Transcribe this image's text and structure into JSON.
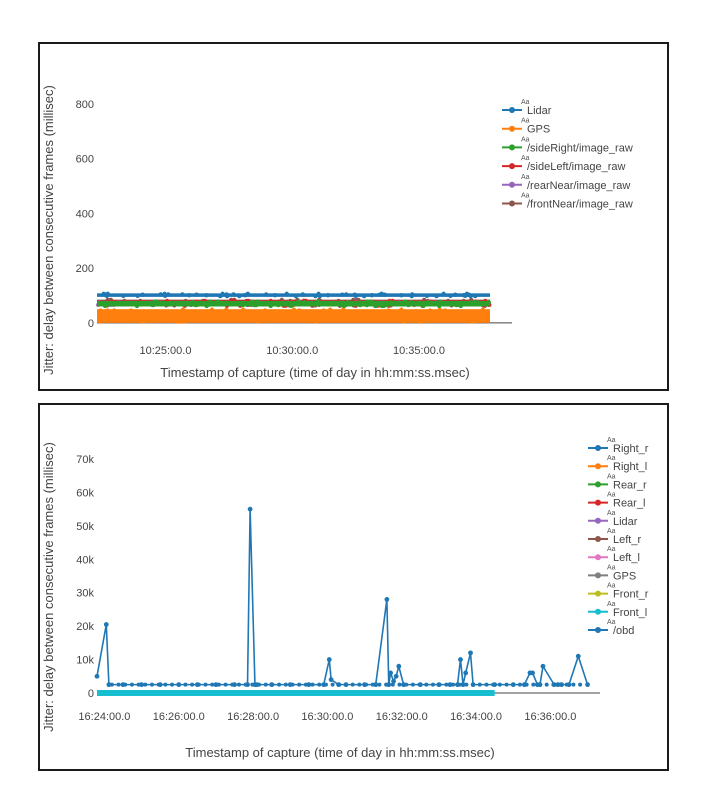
{
  "chart_data": [
    {
      "type": "line",
      "title": "",
      "xlabel": "Timestamp of capture (time of day in hh:mm:ss.msec)",
      "ylabel": "Jitter: delay between consecutive frames (millisec)",
      "x_tick_labels": [
        "10:25:00.0",
        "10:30:00.0",
        "10:35:00.0"
      ],
      "x_tick_minutes": [
        25,
        30,
        35
      ],
      "xlim_minutes": [
        22.3,
        37.8
      ],
      "x_data_range_minutes": [
        22.3,
        37.8
      ],
      "y_ticks": [
        0,
        200,
        400,
        600,
        800
      ],
      "y_tick_labels": [
        "0",
        "200",
        "400",
        "600",
        "800"
      ],
      "ylim": [
        -15,
        880
      ],
      "grid": false,
      "legend_position": "right",
      "legend_marker_text": "Aa",
      "series": [
        {
          "name": "Lidar",
          "color": "#1f77b4",
          "band": [
            95,
            108
          ],
          "jitter_points": [
            98,
            104,
            101,
            106,
            99,
            103
          ]
        },
        {
          "name": "GPS",
          "color": "#ff7f0e",
          "band": [
            0,
            50
          ],
          "jitter_points": [
            5,
            45,
            20,
            38,
            12,
            48
          ]
        },
        {
          "name": "/sideRight/image_raw",
          "color": "#2ca02c",
          "band": [
            60,
            80
          ],
          "jitter_points": [
            65,
            75,
            70,
            78,
            62
          ]
        },
        {
          "name": "/sideLeft/image_raw",
          "color": "#d62728",
          "band": [
            60,
            82
          ],
          "jitter_points": [
            63,
            77,
            70,
            80,
            66
          ]
        },
        {
          "name": "/rearNear/image_raw",
          "color": "#9467bd",
          "band": [
            62,
            80
          ],
          "jitter_points": [
            66,
            74,
            70,
            77
          ]
        },
        {
          "name": "/frontNear/image_raw",
          "color": "#8c564b",
          "band": [
            62,
            85
          ],
          "jitter_points": [
            64,
            80,
            72,
            84,
            68
          ]
        }
      ]
    },
    {
      "type": "line",
      "title": "",
      "xlabel": "Timestamp of capture (time of day in hh:mm:ss.msec)",
      "ylabel": "Jitter: delay between consecutive frames (millisec)",
      "x_tick_labels": [
        "16:24:00.0",
        "16:26:00.0",
        "16:28:00.0",
        "16:30:00.0",
        "16:32:00.0",
        "16:34:00.0",
        "16:36:00.0"
      ],
      "x_tick_minutes": [
        24,
        26,
        28,
        30,
        32,
        34,
        36
      ],
      "xlim_minutes": [
        23.8,
        37.2
      ],
      "y_ticks": [
        0,
        10000,
        20000,
        30000,
        40000,
        50000,
        60000,
        70000
      ],
      "y_tick_labels": [
        "0",
        "10k",
        "20k",
        "30k",
        "40k",
        "50k",
        "60k",
        "70k"
      ],
      "ylim": [
        -1500,
        73000
      ],
      "grid": false,
      "legend_position": "right",
      "legend_marker_text": "Aa",
      "series": [
        {
          "name": "Right_r",
          "color": "#1f77b4"
        },
        {
          "name": "Right_l",
          "color": "#ff7f0e"
        },
        {
          "name": "Rear_r",
          "color": "#2ca02c"
        },
        {
          "name": "Rear_l",
          "color": "#d62728"
        },
        {
          "name": "Lidar",
          "color": "#9467bd"
        },
        {
          "name": "Left_r",
          "color": "#8c564b"
        },
        {
          "name": "Left_l",
          "color": "#e377c2"
        },
        {
          "name": "GPS",
          "color": "#7f7f7f"
        },
        {
          "name": "Front_r",
          "color": "#bcbd22"
        },
        {
          "name": "Front_l",
          "color": "#17becf",
          "band": [
            -300,
            300
          ],
          "x_range_minutes": [
            23.8,
            34.5
          ]
        },
        {
          "name": "/obd",
          "color": "#1f77b4",
          "x_minutes": [
            23.8,
            24.05,
            24.12,
            24.5,
            25,
            25.5,
            26,
            26.5,
            27,
            27.5,
            27.85,
            27.92,
            28.05,
            28.1,
            28.5,
            29,
            29.5,
            29.9,
            30.05,
            30.1,
            30.3,
            30.5,
            31,
            31.3,
            31.6,
            31.65,
            31.7,
            31.78,
            31.85,
            31.92,
            32.05,
            32.5,
            33,
            33.3,
            33.5,
            33.58,
            33.65,
            33.72,
            33.85,
            33.92,
            34.5,
            35,
            35.3,
            35.45,
            35.52,
            35.65,
            35.72,
            35.8,
            36.1,
            36.2,
            36.3,
            36.5,
            36.75,
            37.0
          ],
          "y": [
            5000,
            20500,
            2500,
            2500,
            2500,
            2500,
            2500,
            2500,
            2500,
            2500,
            2500,
            55000,
            2500,
            2500,
            2500,
            2500,
            2500,
            2500,
            10000,
            4000,
            2500,
            2500,
            2500,
            2500,
            28000,
            2500,
            6000,
            3500,
            5000,
            8000,
            2500,
            2500,
            2500,
            2500,
            2500,
            10000,
            2500,
            6000,
            12000,
            2500,
            2500,
            2500,
            2500,
            6000,
            6000,
            2500,
            2500,
            8000,
            2500,
            2500,
            2500,
            2500,
            11000,
            2500
          ]
        }
      ]
    }
  ]
}
